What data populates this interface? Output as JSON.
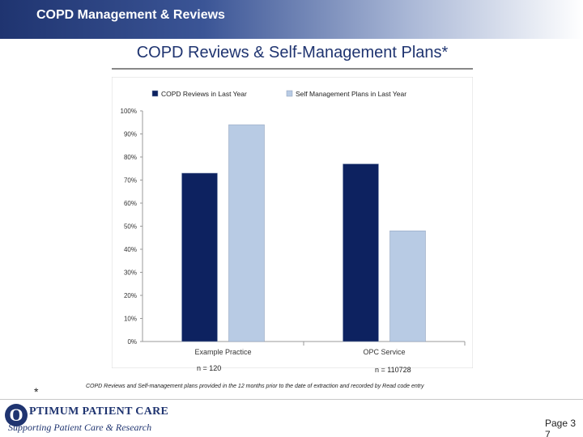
{
  "header": {
    "title": "COPD Management & Reviews"
  },
  "slide": {
    "title": "COPD Reviews & Self-Management Plans*"
  },
  "chart_data": {
    "type": "bar",
    "title": "COPD Reviews & Self-Management Plans*",
    "categories": [
      "Example Practice",
      "OPC Service"
    ],
    "series": [
      {
        "name": "COPD Reviews in Last Year",
        "values": [
          73,
          77
        ],
        "color": "#0d2260"
      },
      {
        "name": "Self Management Plans in Last Year",
        "values": [
          94,
          48
        ],
        "color": "#b8cbe4"
      }
    ],
    "ylim": [
      0,
      100
    ],
    "yticks": [
      "0%",
      "10%",
      "20%",
      "30%",
      "40%",
      "50%",
      "60%",
      "70%",
      "80%",
      "90%",
      "100%"
    ],
    "legend": "top",
    "xlabel": "",
    "ylabel": ""
  },
  "n_labels": {
    "practice": "n =  120",
    "opc": "n =  110728"
  },
  "footnote": {
    "marker": "*",
    "text": "COPD Reviews and Self-management plans provided in the 12 months prior to the date of extraction and recorded by Read code entry"
  },
  "logo": {
    "initial": "O",
    "name": "PTIMUM PATIENT CARE",
    "tagline": "Supporting Patient Care & Research"
  },
  "page": {
    "label": "Page 37"
  }
}
